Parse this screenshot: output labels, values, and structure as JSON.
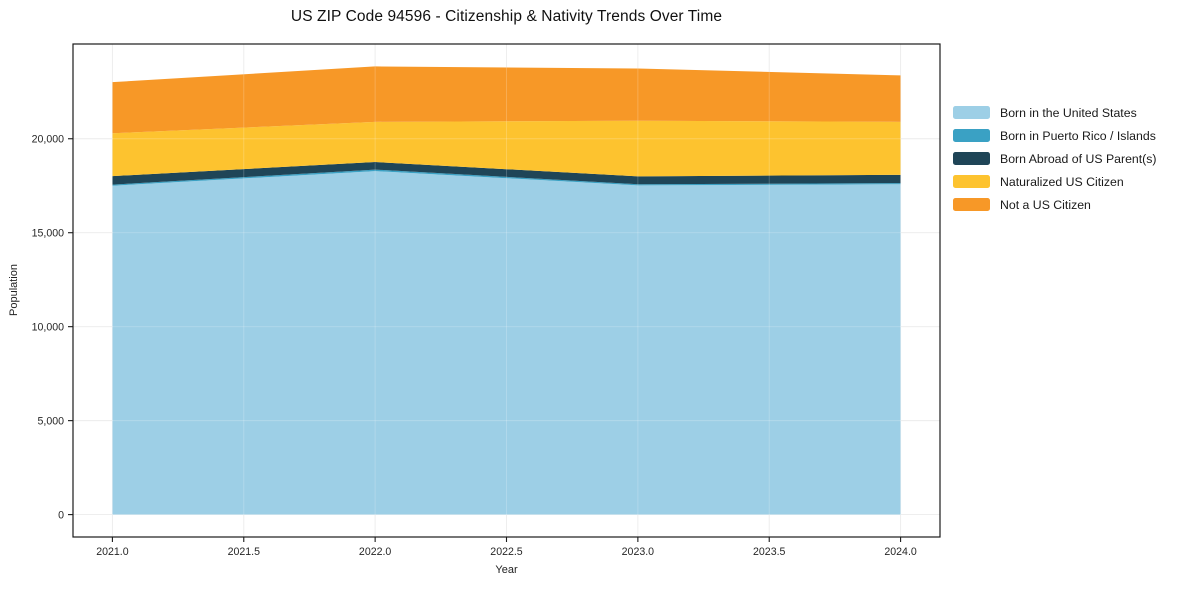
{
  "chart_data": {
    "type": "area",
    "stacked": true,
    "title": "US ZIP Code 94596 - Citizenship & Nativity Trends Over Time",
    "xlabel": "Year",
    "ylabel": "Population",
    "x": [
      2021,
      2022,
      2023,
      2024
    ],
    "series": [
      {
        "name": "Born in the United States",
        "color": "#9dcfe6",
        "values": [
          17500,
          18280,
          17520,
          17580
        ]
      },
      {
        "name": "Born in Puerto Rico / Islands",
        "color": "#3aa1c4",
        "values": [
          60,
          80,
          60,
          60
        ]
      },
      {
        "name": "Born Abroad of US Parent(s)",
        "color": "#1f4557",
        "values": [
          450,
          400,
          420,
          440
        ]
      },
      {
        "name": "Naturalized US Citizen",
        "color": "#fdc32f",
        "values": [
          2280,
          2140,
          2960,
          2820
        ]
      },
      {
        "name": "Not a US Citizen",
        "color": "#f79827",
        "values": [
          2720,
          2950,
          2780,
          2470
        ]
      }
    ],
    "x_ticks": [
      "2021.0",
      "2021.5",
      "2022.0",
      "2022.5",
      "2023.0",
      "2023.5",
      "2024.0"
    ],
    "x_tick_values": [
      2021,
      2021.5,
      2022,
      2022.5,
      2023,
      2023.5,
      2024
    ],
    "y_ticks": [
      "0",
      "5,000",
      "10,000",
      "15,000",
      "20,000"
    ],
    "y_tick_values": [
      0,
      5000,
      10000,
      15000,
      20000
    ],
    "xlim": [
      2020.85,
      2024.15
    ],
    "ylim": [
      -1192,
      25042
    ],
    "grid": true,
    "legend_position": "right",
    "axis_color": "#1a1a1a",
    "grid_color": "#e8e8e8",
    "tick_label_color": "#262626"
  }
}
